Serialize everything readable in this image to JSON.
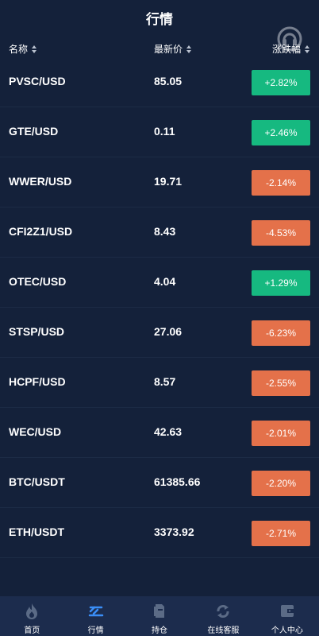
{
  "header": {
    "title": "行情"
  },
  "columns": {
    "name": "名称",
    "price": "最新价",
    "change": "涨跌幅"
  },
  "colors": {
    "up": "#16b980",
    "down": "#e4714a",
    "background": "#14213a",
    "tabbar": "#1c2c4d",
    "active_icon": "#3a8ef6"
  },
  "rows": [
    {
      "symbol": "PVSC/USD",
      "price": "85.05",
      "change": "+2.82%",
      "direction": "up"
    },
    {
      "symbol": "GTE/USD",
      "price": "0.11",
      "change": "+2.46%",
      "direction": "up"
    },
    {
      "symbol": "WWER/USD",
      "price": "19.71",
      "change": "-2.14%",
      "direction": "down"
    },
    {
      "symbol": "CFI2Z1/USD",
      "price": "8.43",
      "change": "-4.53%",
      "direction": "down"
    },
    {
      "symbol": "OTEC/USD",
      "price": "4.04",
      "change": "+1.29%",
      "direction": "up"
    },
    {
      "symbol": "STSP/USD",
      "price": "27.06",
      "change": "-6.23%",
      "direction": "down"
    },
    {
      "symbol": "HCPF/USD",
      "price": "8.57",
      "change": "-2.55%",
      "direction": "down"
    },
    {
      "symbol": "WEC/USD",
      "price": "42.63",
      "change": "-2.01%",
      "direction": "down"
    },
    {
      "symbol": "BTC/USDT",
      "price": "61385.66",
      "change": "-2.20%",
      "direction": "down"
    },
    {
      "symbol": "ETH/USDT",
      "price": "3373.92",
      "change": "-2.71%",
      "direction": "down"
    }
  ],
  "tabs": [
    {
      "label": "首页",
      "icon": "flame-icon",
      "active": false
    },
    {
      "label": "行情",
      "icon": "market-icon",
      "active": true
    },
    {
      "label": "持仓",
      "icon": "document-icon",
      "active": false
    },
    {
      "label": "在线客服",
      "icon": "refresh-icon",
      "active": false
    },
    {
      "label": "个人中心",
      "icon": "wallet-icon",
      "active": false
    }
  ]
}
